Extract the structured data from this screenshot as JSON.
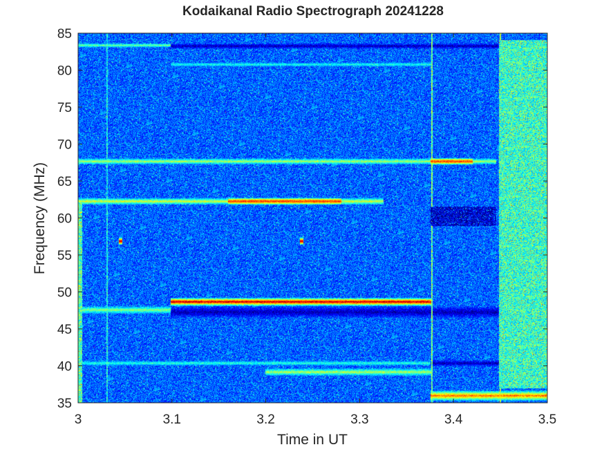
{
  "chart_data": {
    "type": "heatmap",
    "title": "Kodaikanal Radio Spectrograph  20241228",
    "xlabel": "Time in UT",
    "ylabel": "Frequency (MHz)",
    "xlim": [
      3.0,
      3.5
    ],
    "ylim": [
      35,
      85
    ],
    "xticks": [
      3.0,
      3.1,
      3.2,
      3.3,
      3.4,
      3.5
    ],
    "xtick_labels": [
      "3",
      "3.1",
      "3.2",
      "3.3",
      "3.4",
      "3.5"
    ],
    "yticks": [
      35,
      40,
      45,
      50,
      55,
      60,
      65,
      70,
      75,
      80,
      85
    ],
    "ytick_labels": [
      "35",
      "40",
      "45",
      "50",
      "55",
      "60",
      "65",
      "70",
      "75",
      "80",
      "85"
    ],
    "colormap": "jet",
    "background_level": 0.22,
    "grid": false,
    "features": [
      {
        "kind": "horizontal-band",
        "freq": 47.6,
        "t_start": 3.0,
        "t_end": 3.099,
        "width_mhz": 0.5,
        "level": 0.52
      },
      {
        "kind": "horizontal-band",
        "freq": 48.7,
        "t_start": 3.099,
        "t_end": 3.376,
        "width_mhz": 0.55,
        "level": 0.95
      },
      {
        "kind": "horizontal-band",
        "freq": 47.3,
        "t_start": 3.099,
        "t_end": 3.5,
        "width_mhz": 0.8,
        "level": 0.05
      },
      {
        "kind": "horizontal-band",
        "freq": 62.3,
        "t_start": 3.0,
        "t_end": 3.325,
        "width_mhz": 0.45,
        "level": 0.6
      },
      {
        "kind": "horizontal-band",
        "freq": 62.3,
        "t_start": 3.16,
        "t_end": 3.28,
        "width_mhz": 0.45,
        "level": 0.82
      },
      {
        "kind": "horizontal-band",
        "freq": 67.7,
        "t_start": 3.0,
        "t_end": 3.445,
        "width_mhz": 0.4,
        "level": 0.55
      },
      {
        "kind": "horizontal-band",
        "freq": 67.7,
        "t_start": 3.376,
        "t_end": 3.42,
        "width_mhz": 0.45,
        "level": 0.82
      },
      {
        "kind": "horizontal-band",
        "freq": 39.2,
        "t_start": 3.2,
        "t_end": 3.376,
        "width_mhz": 0.5,
        "level": 0.55
      },
      {
        "kind": "horizontal-band",
        "freq": 40.4,
        "t_start": 3.0,
        "t_end": 3.376,
        "width_mhz": 0.3,
        "level": 0.42
      },
      {
        "kind": "horizontal-band",
        "freq": 36.0,
        "t_start": 3.376,
        "t_end": 3.5,
        "width_mhz": 0.7,
        "level": 0.78
      },
      {
        "kind": "horizontal-band",
        "freq": 83.4,
        "t_start": 3.0,
        "t_end": 3.099,
        "width_mhz": 0.25,
        "level": 0.5
      },
      {
        "kind": "horizontal-band",
        "freq": 83.3,
        "t_start": 3.099,
        "t_end": 3.5,
        "width_mhz": 0.35,
        "level": 0.05
      },
      {
        "kind": "horizontal-band",
        "freq": 80.8,
        "t_start": 3.099,
        "t_end": 3.376,
        "width_mhz": 0.25,
        "level": 0.4
      },
      {
        "kind": "horizontal-band",
        "freq": 40.4,
        "t_start": 3.376,
        "t_end": 3.5,
        "width_mhz": 0.4,
        "level": 0.05
      },
      {
        "kind": "vertical-line",
        "time": 3.376,
        "level": 0.5
      },
      {
        "kind": "vertical-line",
        "time": 3.449,
        "level": 0.55
      },
      {
        "kind": "vertical-line",
        "time": 3.03,
        "level": 0.38
      },
      {
        "kind": "block",
        "t_start": 3.376,
        "t_end": 3.445,
        "f_start": 59.0,
        "f_end": 61.5,
        "level": 0.08
      },
      {
        "kind": "block",
        "t_start": 3.449,
        "t_end": 3.5,
        "f_start": 37.0,
        "f_end": 84.0,
        "level": 0.42
      },
      {
        "kind": "block",
        "t_start": 3.0,
        "t_end": 3.004,
        "f_start": 35.0,
        "f_end": 62.0,
        "level": 0.45
      },
      {
        "kind": "spot",
        "time": 3.045,
        "freq": 56.9,
        "level": 0.95
      },
      {
        "kind": "spot",
        "time": 3.238,
        "freq": 56.9,
        "level": 0.95
      }
    ]
  }
}
